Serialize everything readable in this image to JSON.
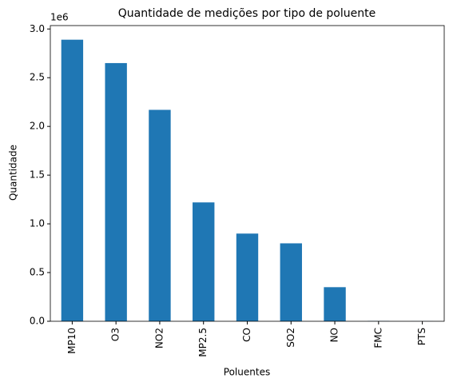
{
  "chart_data": {
    "type": "bar",
    "title": "Quantidade de medições por tipo de poluente",
    "xlabel": "Poluentes",
    "ylabel": "Quantidade",
    "y_offset_label": "1e6",
    "categories": [
      "MP10",
      "O3",
      "NO2",
      "MP2.5",
      "CO",
      "SO2",
      "NO",
      "FMC",
      "PTS"
    ],
    "values": [
      2890000,
      2650000,
      2170000,
      1220000,
      900000,
      800000,
      350000,
      3000,
      1000
    ],
    "color": "#1f77b4",
    "ylim": [
      0,
      3035000
    ],
    "yticks": [
      {
        "value": 0,
        "label": "0.0"
      },
      {
        "value": 500000,
        "label": "0.5"
      },
      {
        "value": 1000000,
        "label": "1.0"
      },
      {
        "value": 1500000,
        "label": "1.5"
      },
      {
        "value": 2000000,
        "label": "2.0"
      },
      {
        "value": 2500000,
        "label": "2.5"
      },
      {
        "value": 3000000,
        "label": "3.0"
      }
    ],
    "grid": false
  }
}
